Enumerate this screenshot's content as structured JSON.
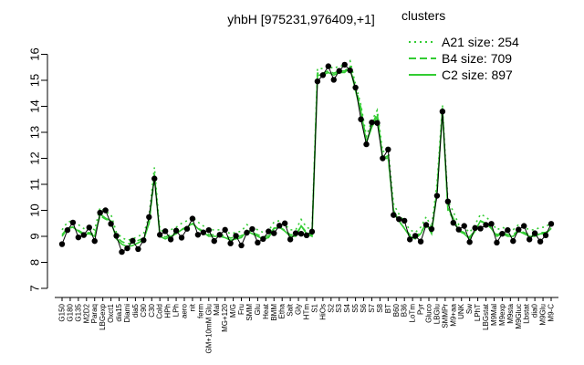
{
  "chart_data": {
    "type": "line",
    "title": "yhbH [975231,976409,+1]",
    "xlabel": "",
    "ylabel": "",
    "ylim": [
      7,
      16
    ],
    "yticks": [
      7,
      8,
      9,
      10,
      11,
      12,
      13,
      14,
      15,
      16
    ],
    "grid": false,
    "legend": {
      "title": "clusters",
      "placement": "top-right",
      "entries": [
        {
          "label": "A21 size: 254",
          "style": "dotted",
          "color": "#33cc33"
        },
        {
          "label": "B4 size: 709",
          "style": "dashed",
          "color": "#33cc33"
        },
        {
          "label": "C2 size: 897",
          "style": "solid",
          "color": "#33cc33"
        }
      ]
    },
    "x_tick_labels": [
      "G150",
      "G180",
      "G135",
      "M2D2",
      "Paraq",
      "LBGexp",
      "Oxct1",
      "dia15",
      "Diami",
      "dia5",
      "C90",
      "C30",
      "Cold",
      "HPh",
      "LPh",
      "aero",
      "nit",
      "ferm",
      "GM+10mM Glu",
      "Mal",
      "MG+120",
      "M/G",
      "Fru",
      "SMM",
      "Glu",
      "Heat",
      "BMM",
      "Etha",
      "Salt",
      "Gly",
      "HTm",
      "S1",
      "HiOs",
      "S2",
      "S3",
      "S4",
      "S5",
      "S6",
      "S7",
      "S8",
      "BT",
      "B60",
      "B36",
      "LoTm",
      "Pyr",
      "Gluco",
      "LBGlu",
      "SMMPr",
      "M9+aa",
      "UNK",
      "Sw",
      "LPhT",
      "LBGstat",
      "M9Mal",
      "M9exp",
      "M9sta",
      "M9Gluc",
      "Lbstat",
      "dia0",
      "M9Glu",
      "M9-C"
    ],
    "series_c2": [
      9.0,
      9.3,
      9.35,
      9.2,
      9.05,
      9.1,
      9.0,
      9.85,
      9.7,
      9.6,
      8.9,
      8.7,
      8.6,
      8.65,
      8.75,
      8.85,
      9.5,
      11.4,
      9.0,
      8.9,
      9.0,
      9.1,
      9.25,
      9.35,
      9.5,
      9.3,
      9.15,
      9.0,
      9.0,
      9.0,
      8.95,
      8.85,
      8.9,
      8.95,
      9.2,
      9.1,
      9.0,
      8.9,
      8.95,
      9.3,
      9.35,
      9.2,
      9.0,
      9.0,
      9.4,
      9.1,
      9.0,
      15.2,
      15.2,
      15.3,
      15.2,
      15.3,
      15.3,
      15.5,
      14.6,
      13.8,
      12.6,
      13.2,
      13.6,
      12.0,
      12.1,
      10.0,
      9.6,
      9.3,
      9.0,
      8.9,
      9.1,
      9.5,
      9.1,
      10.8,
      13.8,
      10.1,
      9.7,
      9.2,
      9.1,
      8.9,
      9.2,
      9.6,
      9.5,
      9.3,
      9.0,
      9.1,
      9.0,
      9.0,
      9.2,
      9.1,
      9.0,
      9.0,
      9.1,
      9.1,
      9.3
    ]
  },
  "clusters_title": "clusters",
  "legend_labels": [
    "A21 size: 254",
    "B4 size: 709",
    "C2 size: 897"
  ]
}
